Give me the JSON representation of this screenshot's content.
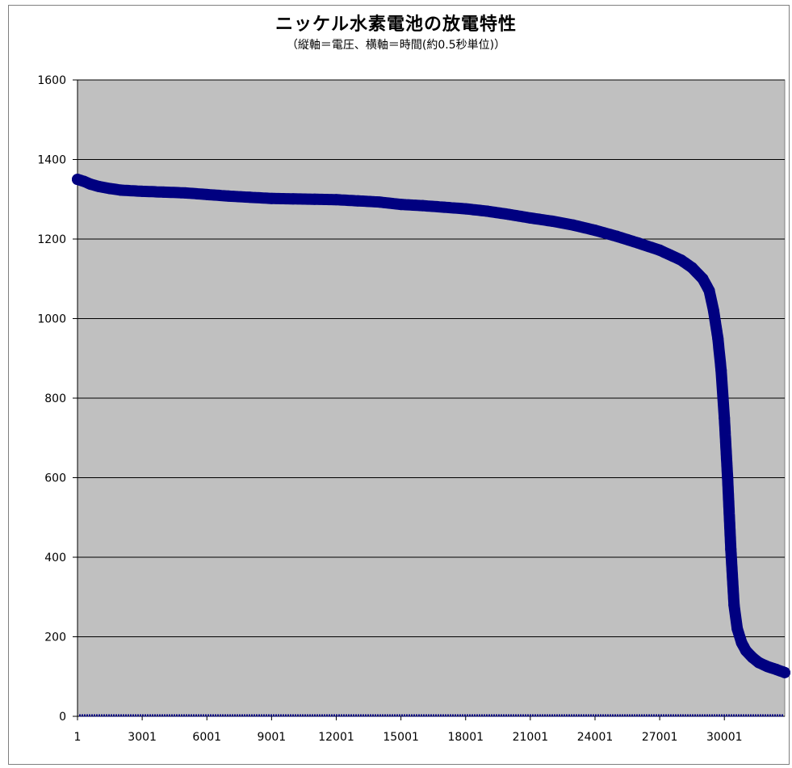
{
  "chart_data": {
    "type": "scatter",
    "title": "ニッケル水素電池の放電特性",
    "subtitle": "（縦軸＝電圧、横軸＝時間(約0.5秒単位)）",
    "xlabel": "",
    "ylabel": "",
    "xlim": [
      1,
      32800
    ],
    "ylim": [
      0,
      1600
    ],
    "y_ticks": [
      0,
      200,
      400,
      600,
      800,
      1000,
      1200,
      1400,
      1600
    ],
    "x_tick_labels": [
      "1",
      "3001",
      "6001",
      "9001",
      "12001",
      "15001",
      "18001",
      "21001",
      "24001",
      "27001",
      "30001"
    ],
    "x_tick_values": [
      1,
      3001,
      6001,
      9001,
      12001,
      15001,
      18001,
      21001,
      24001,
      27001,
      30001
    ],
    "grid": true,
    "plot_background": "#c0c0c0",
    "series_color": "#000080",
    "series": [
      {
        "name": "",
        "points": [
          [
            1,
            1350
          ],
          [
            300,
            1345
          ],
          [
            600,
            1338
          ],
          [
            1000,
            1332
          ],
          [
            1500,
            1327
          ],
          [
            2000,
            1323
          ],
          [
            3000,
            1320
          ],
          [
            4000,
            1318
          ],
          [
            5000,
            1316
          ],
          [
            6000,
            1312
          ],
          [
            7000,
            1308
          ],
          [
            8000,
            1305
          ],
          [
            9000,
            1302
          ],
          [
            10000,
            1301
          ],
          [
            11000,
            1300
          ],
          [
            12000,
            1299
          ],
          [
            13000,
            1296
          ],
          [
            14000,
            1293
          ],
          [
            15000,
            1287
          ],
          [
            16000,
            1284
          ],
          [
            17000,
            1280
          ],
          [
            18000,
            1276
          ],
          [
            19000,
            1270
          ],
          [
            20000,
            1262
          ],
          [
            21000,
            1253
          ],
          [
            22000,
            1245
          ],
          [
            23000,
            1235
          ],
          [
            24000,
            1222
          ],
          [
            25000,
            1207
          ],
          [
            26000,
            1190
          ],
          [
            27000,
            1172
          ],
          [
            28000,
            1147
          ],
          [
            28500,
            1128
          ],
          [
            29000,
            1100
          ],
          [
            29300,
            1070
          ],
          [
            29500,
            1020
          ],
          [
            29700,
            950
          ],
          [
            29850,
            870
          ],
          [
            30000,
            750
          ],
          [
            30150,
            600
          ],
          [
            30300,
            420
          ],
          [
            30450,
            280
          ],
          [
            30600,
            220
          ],
          [
            30800,
            185
          ],
          [
            31000,
            165
          ],
          [
            31300,
            148
          ],
          [
            31600,
            135
          ],
          [
            32000,
            125
          ],
          [
            32400,
            118
          ],
          [
            32800,
            110
          ]
        ],
        "baseline_value": 0
      }
    ]
  }
}
